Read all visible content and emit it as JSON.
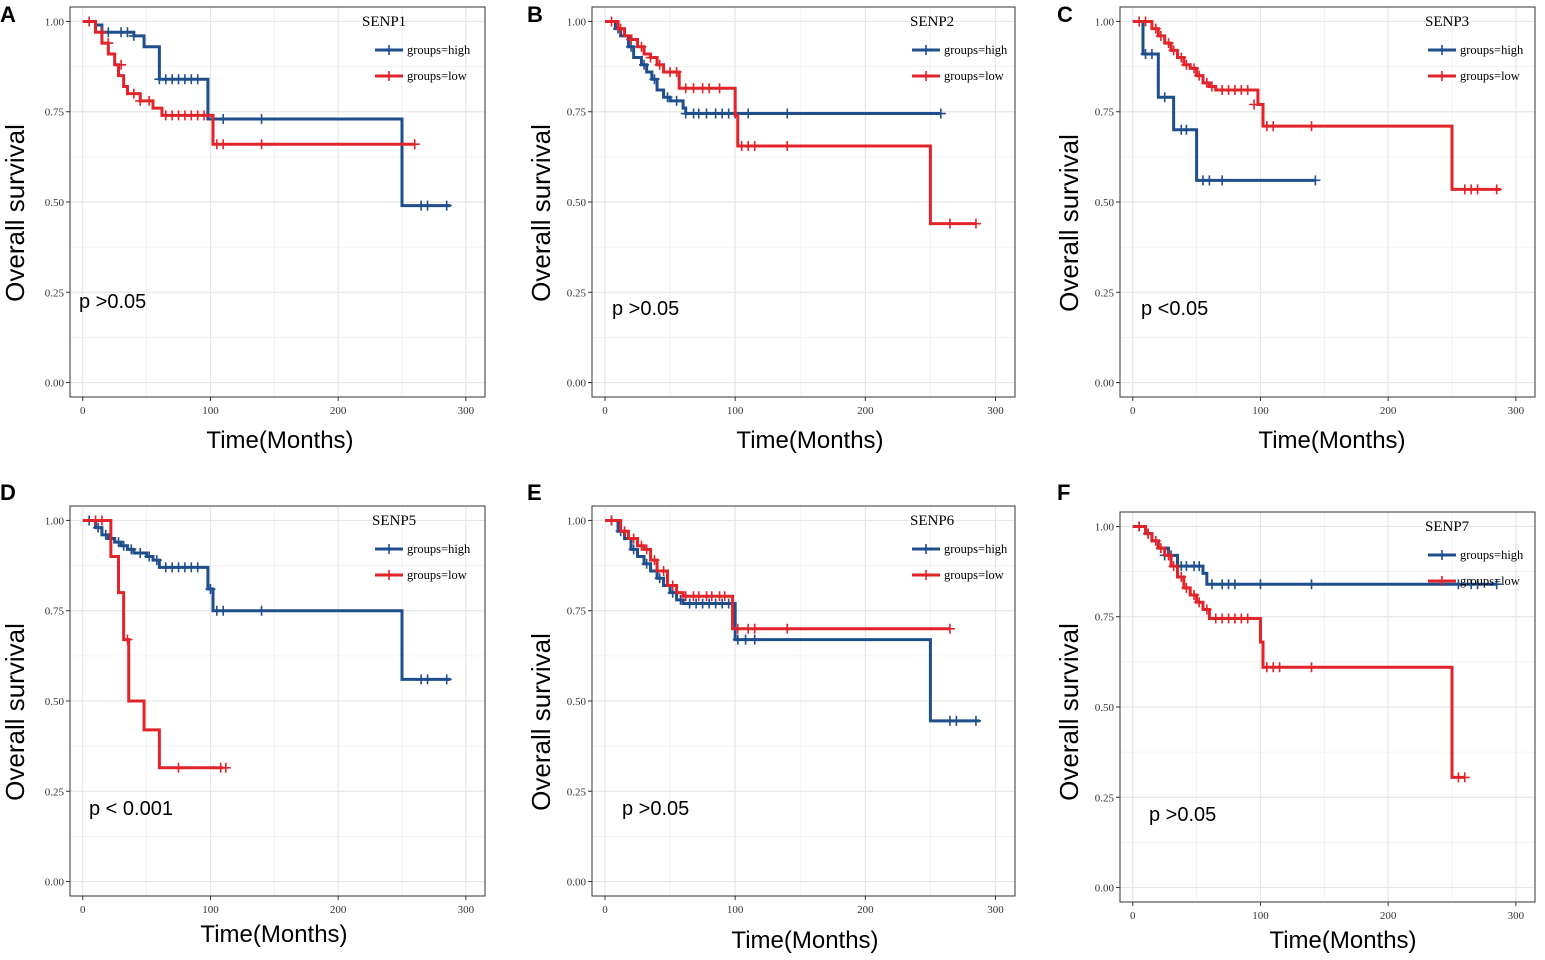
{
  "colors": {
    "high": "#1f4e8c",
    "low": "#e0242a",
    "grid": "#e6e6e6",
    "border": "#333333"
  },
  "chart_data": [
    {
      "type": "line",
      "panel": "A",
      "title": "SENP1",
      "xlabel": "Time(Months)",
      "ylabel": "Overall survival",
      "xlim": [
        -10,
        315
      ],
      "ylim": [
        -0.04,
        1.04
      ],
      "xticks": [
        0,
        100,
        200,
        300
      ],
      "yticks": [
        "0.00",
        "0.25",
        "0.50",
        "0.75",
        "1.00"
      ],
      "pvalue": "p >0.05",
      "series": [
        {
          "name": "groups=high",
          "color_key": "high",
          "x": [
            0,
            10,
            15,
            25,
            40,
            48,
            55,
            60,
            95,
            98,
            100,
            248,
            250,
            288
          ],
          "y": [
            1.0,
            0.99,
            0.97,
            0.97,
            0.96,
            0.93,
            0.93,
            0.84,
            0.84,
            0.73,
            0.73,
            0.73,
            0.49,
            0.49
          ],
          "censor_x": [
            20,
            30,
            35,
            40,
            60,
            65,
            70,
            75,
            80,
            85,
            90,
            110,
            140,
            265,
            270,
            285
          ],
          "censor_y": [
            0.97,
            0.97,
            0.97,
            0.96,
            0.84,
            0.84,
            0.84,
            0.84,
            0.84,
            0.84,
            0.84,
            0.73,
            0.73,
            0.49,
            0.49,
            0.49
          ]
        },
        {
          "name": "groups=low",
          "color_key": "low",
          "x": [
            0,
            10,
            15,
            20,
            25,
            28,
            32,
            35,
            40,
            45,
            50,
            55,
            58,
            62,
            100,
            102,
            105,
            260
          ],
          "y": [
            1.0,
            0.97,
            0.94,
            0.91,
            0.88,
            0.85,
            0.82,
            0.8,
            0.8,
            0.78,
            0.78,
            0.76,
            0.76,
            0.74,
            0.74,
            0.66,
            0.66,
            0.66
          ],
          "censor_x": [
            5,
            15,
            20,
            30,
            40,
            45,
            52,
            65,
            70,
            75,
            80,
            85,
            90,
            95,
            105,
            110,
            140,
            260
          ],
          "censor_y": [
            1.0,
            0.97,
            0.94,
            0.88,
            0.8,
            0.78,
            0.78,
            0.74,
            0.74,
            0.74,
            0.74,
            0.74,
            0.74,
            0.74,
            0.66,
            0.66,
            0.66,
            0.66
          ]
        }
      ]
    },
    {
      "type": "line",
      "panel": "B",
      "title": "SENP2",
      "xlabel": "Time(Months)",
      "ylabel": "Overall survival",
      "xlim": [
        -10,
        315
      ],
      "ylim": [
        -0.04,
        1.04
      ],
      "xticks": [
        0,
        100,
        200,
        300
      ],
      "yticks": [
        "0.00",
        "0.25",
        "0.50",
        "0.75",
        "1.00"
      ],
      "pvalue": "p >0.05",
      "series": [
        {
          "name": "groups=high",
          "color_key": "high",
          "x": [
            0,
            8,
            12,
            18,
            22,
            28,
            32,
            36,
            40,
            45,
            50,
            55,
            60,
            62,
            258
          ],
          "y": [
            1.0,
            0.98,
            0.96,
            0.93,
            0.9,
            0.88,
            0.86,
            0.84,
            0.81,
            0.79,
            0.78,
            0.78,
            0.76,
            0.745,
            0.745
          ],
          "censor_x": [
            10,
            20,
            30,
            38,
            48,
            55,
            62,
            68,
            72,
            78,
            85,
            90,
            95,
            100,
            110,
            140,
            258
          ],
          "censor_y": [
            0.98,
            0.93,
            0.88,
            0.84,
            0.79,
            0.78,
            0.745,
            0.745,
            0.745,
            0.745,
            0.745,
            0.745,
            0.745,
            0.745,
            0.745,
            0.745,
            0.745
          ]
        },
        {
          "name": "groups=low",
          "color_key": "low",
          "x": [
            0,
            10,
            15,
            20,
            25,
            30,
            35,
            40,
            45,
            55,
            57,
            95,
            100,
            102,
            248,
            250,
            285
          ],
          "y": [
            1.0,
            0.98,
            0.96,
            0.95,
            0.93,
            0.91,
            0.9,
            0.88,
            0.86,
            0.86,
            0.815,
            0.815,
            0.74,
            0.655,
            0.655,
            0.44,
            0.44
          ],
          "censor_x": [
            5,
            12,
            20,
            28,
            35,
            42,
            50,
            55,
            62,
            68,
            75,
            80,
            88,
            105,
            110,
            115,
            140,
            265,
            285
          ],
          "censor_y": [
            1.0,
            0.98,
            0.95,
            0.93,
            0.9,
            0.88,
            0.86,
            0.86,
            0.815,
            0.815,
            0.815,
            0.815,
            0.815,
            0.655,
            0.655,
            0.655,
            0.655,
            0.44,
            0.44
          ]
        }
      ]
    },
    {
      "type": "line",
      "panel": "C",
      "title": "SENP3",
      "xlabel": "Time(Months)",
      "ylabel": "Overall survival",
      "xlim": [
        -10,
        315
      ],
      "ylim": [
        -0.04,
        1.04
      ],
      "xticks": [
        0,
        100,
        200,
        300
      ],
      "yticks": [
        "0.00",
        "0.25",
        "0.50",
        "0.75",
        "1.00"
      ],
      "pvalue": "p <0.05",
      "series": [
        {
          "name": "groups=high",
          "color_key": "high",
          "x": [
            0,
            8,
            18,
            20,
            30,
            32,
            48,
            50,
            143
          ],
          "y": [
            1.0,
            0.91,
            0.91,
            0.79,
            0.79,
            0.7,
            0.7,
            0.56,
            0.56
          ],
          "censor_x": [
            10,
            15,
            25,
            38,
            42,
            55,
            60,
            70,
            143
          ],
          "censor_y": [
            0.91,
            0.91,
            0.79,
            0.7,
            0.7,
            0.56,
            0.56,
            0.56,
            0.56
          ]
        },
        {
          "name": "groups=low",
          "color_key": "low",
          "x": [
            0,
            15,
            20,
            25,
            30,
            35,
            40,
            45,
            50,
            55,
            60,
            65,
            98,
            102,
            248,
            250,
            288
          ],
          "y": [
            1.0,
            0.98,
            0.96,
            0.94,
            0.92,
            0.9,
            0.88,
            0.87,
            0.85,
            0.83,
            0.82,
            0.81,
            0.77,
            0.71,
            0.71,
            0.535,
            0.535
          ],
          "censor_x": [
            5,
            10,
            18,
            22,
            28,
            32,
            38,
            42,
            48,
            52,
            58,
            62,
            70,
            75,
            80,
            85,
            90,
            95,
            105,
            110,
            140,
            260,
            265,
            270,
            285
          ],
          "censor_y": [
            1.0,
            1.0,
            0.98,
            0.96,
            0.94,
            0.92,
            0.9,
            0.88,
            0.87,
            0.85,
            0.83,
            0.82,
            0.81,
            0.81,
            0.81,
            0.81,
            0.81,
            0.77,
            0.71,
            0.71,
            0.71,
            0.535,
            0.535,
            0.535,
            0.535
          ]
        }
      ]
    },
    {
      "type": "line",
      "panel": "D",
      "title": "SENP5",
      "xlabel": "Time(Months)",
      "ylabel": "Overall survival",
      "xlim": [
        -10,
        315
      ],
      "ylim": [
        -0.04,
        1.04
      ],
      "xticks": [
        0,
        100,
        200,
        300
      ],
      "yticks": [
        "0.00",
        "0.25",
        "0.50",
        "0.75",
        "1.00"
      ],
      "pvalue": "p < 0.001",
      "series": [
        {
          "name": "groups=high",
          "color_key": "high",
          "x": [
            0,
            10,
            15,
            20,
            25,
            30,
            35,
            40,
            50,
            55,
            60,
            95,
            98,
            102,
            248,
            250,
            288
          ],
          "y": [
            1.0,
            0.98,
            0.96,
            0.95,
            0.94,
            0.93,
            0.92,
            0.91,
            0.9,
            0.89,
            0.87,
            0.87,
            0.81,
            0.75,
            0.75,
            0.56,
            0.56
          ],
          "censor_x": [
            5,
            12,
            18,
            22,
            28,
            32,
            38,
            45,
            52,
            58,
            65,
            70,
            75,
            80,
            85,
            90,
            100,
            105,
            110,
            140,
            265,
            270,
            285
          ],
          "censor_y": [
            1.0,
            0.98,
            0.96,
            0.95,
            0.94,
            0.93,
            0.92,
            0.91,
            0.9,
            0.89,
            0.87,
            0.87,
            0.87,
            0.87,
            0.87,
            0.87,
            0.81,
            0.75,
            0.75,
            0.75,
            0.56,
            0.56,
            0.56
          ]
        },
        {
          "name": "groups=low",
          "color_key": "low",
          "x": [
            0,
            18,
            22,
            28,
            32,
            36,
            48,
            60,
            110
          ],
          "y": [
            1.0,
            1.0,
            0.9,
            0.8,
            0.67,
            0.5,
            0.42,
            0.315,
            0.315
          ],
          "censor_x": [
            10,
            15,
            35,
            75,
            108,
            112
          ],
          "censor_y": [
            1.0,
            1.0,
            0.67,
            0.315,
            0.315,
            0.315
          ]
        }
      ]
    },
    {
      "type": "line",
      "panel": "E",
      "title": "SENP6",
      "xlabel": "Time(Months)",
      "ylabel": "Overall survival",
      "xlim": [
        -10,
        315
      ],
      "ylim": [
        -0.04,
        1.04
      ],
      "xticks": [
        0,
        100,
        200,
        300
      ],
      "yticks": [
        "0.00",
        "0.25",
        "0.50",
        "0.75",
        "1.00"
      ],
      "pvalue": "p >0.05",
      "series": [
        {
          "name": "groups=high",
          "color_key": "high",
          "x": [
            0,
            10,
            15,
            20,
            25,
            30,
            35,
            40,
            45,
            50,
            55,
            60,
            98,
            100,
            248,
            250,
            288
          ],
          "y": [
            1.0,
            0.97,
            0.95,
            0.92,
            0.9,
            0.88,
            0.86,
            0.84,
            0.82,
            0.8,
            0.78,
            0.77,
            0.77,
            0.67,
            0.67,
            0.445,
            0.445
          ],
          "censor_x": [
            5,
            12,
            22,
            32,
            42,
            52,
            58,
            65,
            70,
            75,
            80,
            85,
            90,
            95,
            102,
            108,
            115,
            265,
            270,
            285
          ],
          "censor_y": [
            1.0,
            0.97,
            0.92,
            0.88,
            0.84,
            0.8,
            0.78,
            0.77,
            0.77,
            0.77,
            0.77,
            0.77,
            0.77,
            0.77,
            0.67,
            0.67,
            0.67,
            0.445,
            0.445,
            0.445
          ]
        },
        {
          "name": "groups=low",
          "color_key": "low",
          "x": [
            0,
            12,
            18,
            25,
            30,
            35,
            40,
            48,
            55,
            60,
            95,
            98,
            265
          ],
          "y": [
            1.0,
            0.97,
            0.95,
            0.93,
            0.92,
            0.89,
            0.86,
            0.82,
            0.8,
            0.79,
            0.79,
            0.7,
            0.7
          ],
          "censor_x": [
            5,
            15,
            22,
            28,
            32,
            38,
            45,
            52,
            62,
            68,
            72,
            78,
            82,
            88,
            92,
            102,
            110,
            115,
            140,
            265
          ],
          "censor_y": [
            1.0,
            0.97,
            0.95,
            0.93,
            0.92,
            0.89,
            0.86,
            0.82,
            0.79,
            0.79,
            0.79,
            0.79,
            0.79,
            0.79,
            0.79,
            0.7,
            0.7,
            0.7,
            0.7,
            0.7
          ]
        }
      ]
    },
    {
      "type": "line",
      "panel": "F",
      "title": "SENP7",
      "xlabel": "Time(Months)",
      "ylabel": "Overall survival",
      "xlim": [
        -10,
        315
      ],
      "ylim": [
        -0.04,
        1.04
      ],
      "xticks": [
        0,
        100,
        200,
        300
      ],
      "yticks": [
        "0.00",
        "0.25",
        "0.50",
        "0.75",
        "1.00"
      ],
      "pvalue": "p >0.05",
      "series": [
        {
          "name": "groups=high",
          "color_key": "high",
          "x": [
            0,
            10,
            15,
            20,
            28,
            35,
            45,
            55,
            58,
            285
          ],
          "y": [
            1.0,
            0.98,
            0.96,
            0.94,
            0.92,
            0.89,
            0.89,
            0.87,
            0.84,
            0.84
          ],
          "censor_x": [
            5,
            12,
            25,
            30,
            38,
            42,
            48,
            52,
            62,
            70,
            75,
            80,
            100,
            140,
            255,
            265,
            270,
            285
          ],
          "censor_y": [
            1.0,
            0.98,
            0.92,
            0.92,
            0.89,
            0.89,
            0.89,
            0.89,
            0.84,
            0.84,
            0.84,
            0.84,
            0.84,
            0.84,
            0.84,
            0.84,
            0.84,
            0.84
          ]
        },
        {
          "name": "groups=low",
          "color_key": "low",
          "x": [
            0,
            10,
            15,
            20,
            25,
            30,
            35,
            40,
            45,
            50,
            55,
            60,
            95,
            100,
            102,
            248,
            250,
            260
          ],
          "y": [
            1.0,
            0.98,
            0.96,
            0.94,
            0.92,
            0.89,
            0.86,
            0.83,
            0.81,
            0.79,
            0.77,
            0.745,
            0.745,
            0.68,
            0.61,
            0.61,
            0.305,
            0.305
          ],
          "censor_x": [
            5,
            12,
            18,
            22,
            28,
            32,
            38,
            42,
            48,
            52,
            58,
            65,
            70,
            75,
            80,
            85,
            90,
            105,
            110,
            115,
            140,
            255,
            260
          ],
          "censor_y": [
            1.0,
            0.98,
            0.96,
            0.94,
            0.92,
            0.89,
            0.86,
            0.83,
            0.81,
            0.79,
            0.77,
            0.745,
            0.745,
            0.745,
            0.745,
            0.745,
            0.745,
            0.61,
            0.61,
            0.61,
            0.61,
            0.305,
            0.305
          ]
        }
      ]
    }
  ]
}
